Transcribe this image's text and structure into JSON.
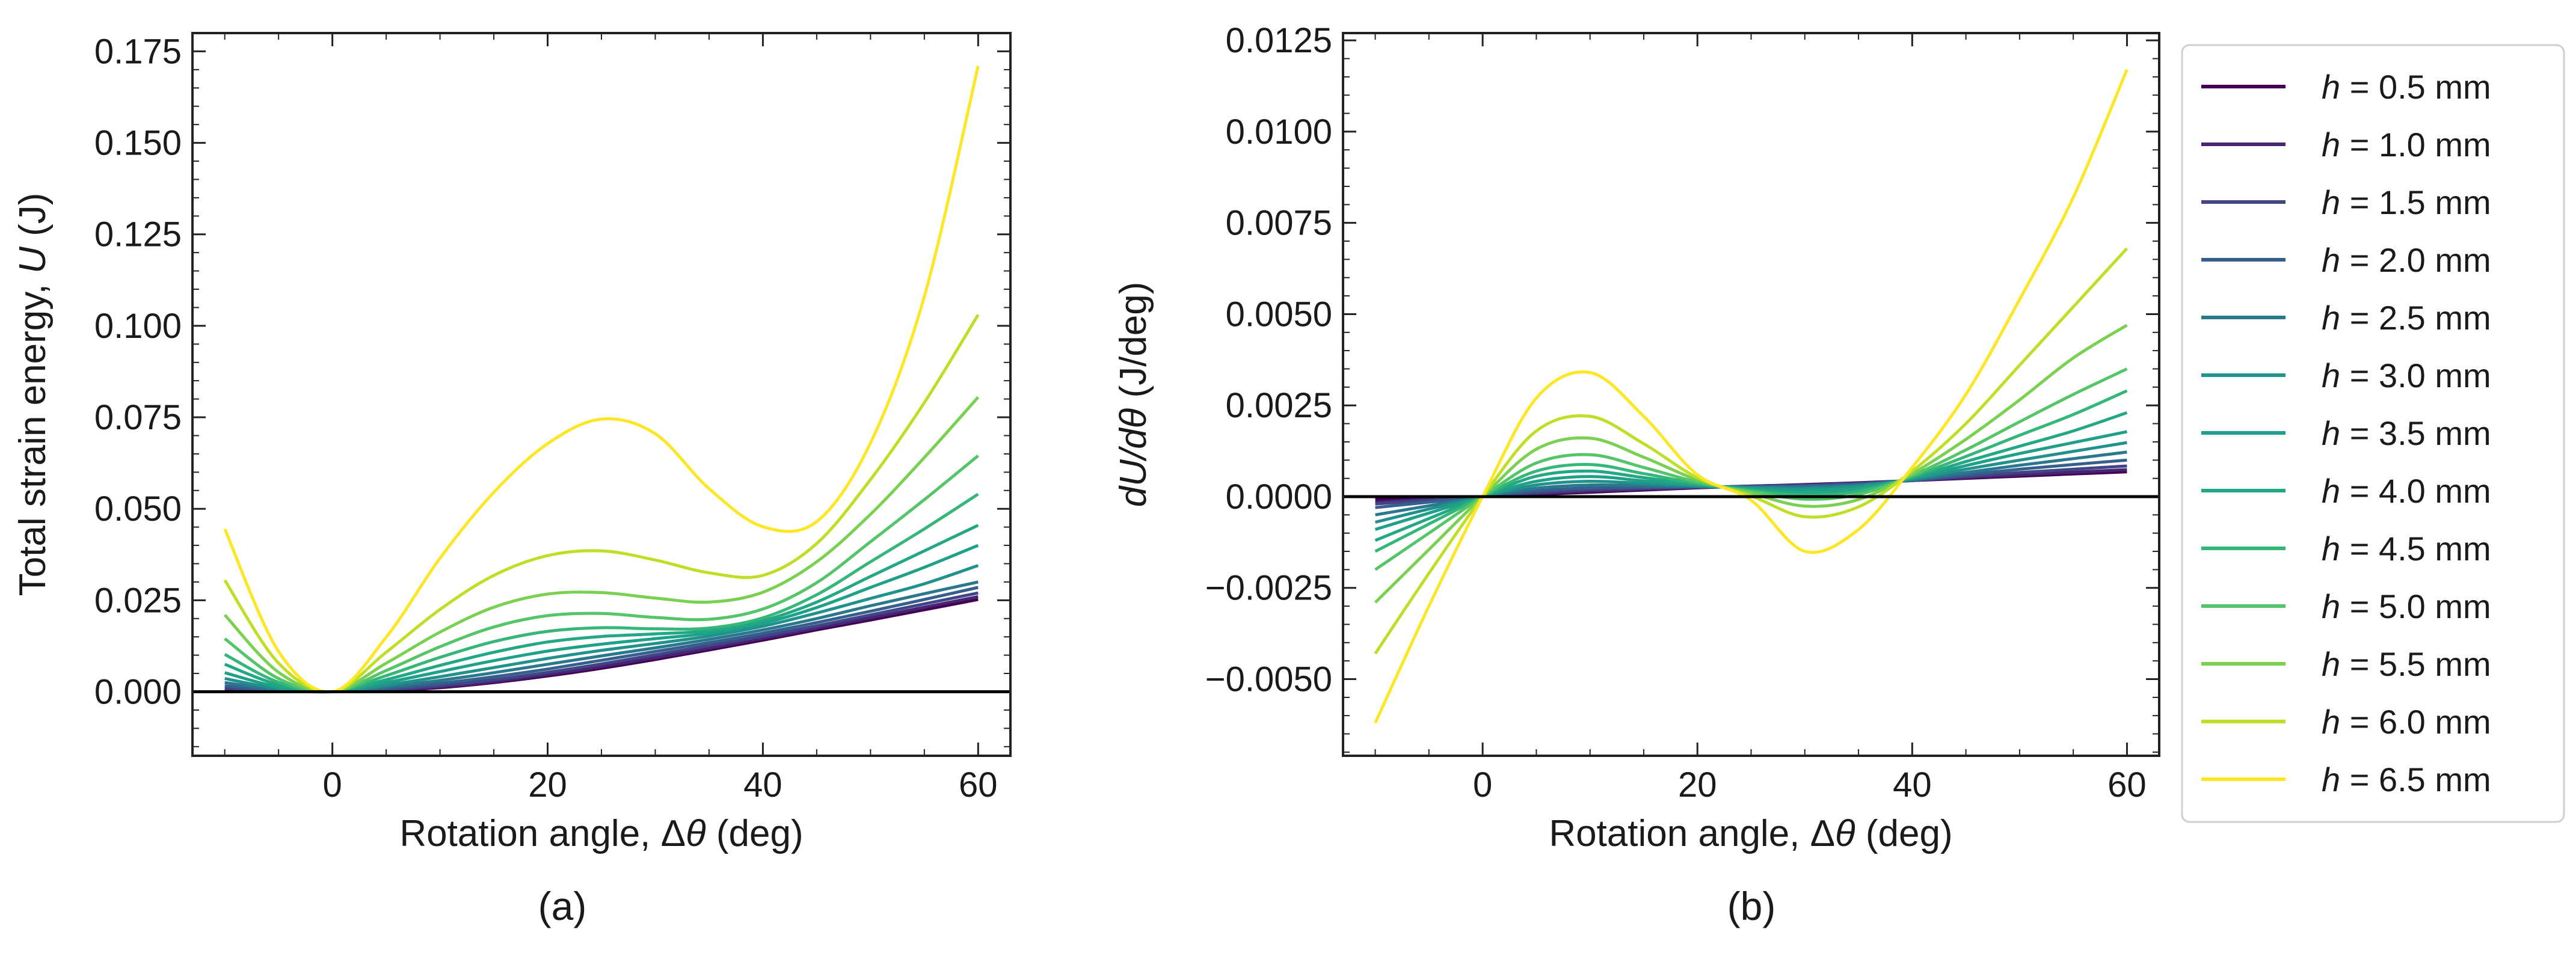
{
  "chart_data": [
    {
      "type": "line",
      "panel": "(a)",
      "xlabel_prefix": "Rotation angle, Δ",
      "xlabel_symbol": "θ",
      "xlabel_suffix": " (deg)",
      "ylabel_prefix": "Total strain energy, ",
      "ylabel_symbol": "U",
      "ylabel_suffix": " (J)",
      "xlim": [
        -13,
        63
      ],
      "ylim": [
        -0.0175,
        0.18
      ],
      "xticks": [
        0,
        20,
        40,
        60
      ],
      "xtick_labels": [
        "0",
        "20",
        "40",
        "60"
      ],
      "yticks": [
        0.0,
        0.025,
        0.05,
        0.075,
        0.1,
        0.125,
        0.15,
        0.175
      ],
      "ytick_labels": [
        "0.000",
        "0.025",
        "0.050",
        "0.075",
        "0.100",
        "0.125",
        "0.150",
        "0.175"
      ],
      "reference_line_y": 0,
      "x": [
        -10,
        -5,
        0,
        5,
        10,
        15,
        20,
        25,
        30,
        35,
        40,
        45,
        50,
        55,
        60
      ],
      "series": [
        {
          "name": "h = 0.5 mm",
          "values": [
            0.0003,
            0.0001,
            0.0,
            0.0003,
            0.0011,
            0.0025,
            0.0043,
            0.0064,
            0.0088,
            0.0114,
            0.0141,
            0.0169,
            0.0196,
            0.0224,
            0.0252
          ]
        },
        {
          "name": "h = 1.0 mm",
          "values": [
            0.0006,
            0.0001,
            0.0,
            0.0004,
            0.0013,
            0.0028,
            0.0047,
            0.0069,
            0.0093,
            0.0119,
            0.0146,
            0.0174,
            0.0202,
            0.0231,
            0.026
          ]
        },
        {
          "name": "h = 1.5 mm",
          "values": [
            0.001,
            0.0002,
            0.0,
            0.0006,
            0.0017,
            0.0033,
            0.0053,
            0.0076,
            0.0101,
            0.0126,
            0.0152,
            0.018,
            0.021,
            0.024,
            0.027
          ]
        },
        {
          "name": "h = 2.0 mm",
          "values": [
            0.0016,
            0.0004,
            0.0,
            0.0009,
            0.0023,
            0.0041,
            0.0062,
            0.0086,
            0.011,
            0.0134,
            0.016,
            0.0189,
            0.022,
            0.0252,
            0.0285
          ]
        },
        {
          "name": "h = 2.5 mm",
          "values": [
            0.0025,
            0.0006,
            0.0,
            0.0013,
            0.0031,
            0.0052,
            0.0075,
            0.0098,
            0.012,
            0.0143,
            0.0169,
            0.02,
            0.0235,
            0.0268,
            0.03
          ]
        },
        {
          "name": "h = 3.0 mm",
          "values": [
            0.0036,
            0.0009,
            0.0,
            0.0018,
            0.0041,
            0.0066,
            0.0091,
            0.0113,
            0.0132,
            0.0152,
            0.0179,
            0.0215,
            0.0255,
            0.0295,
            0.0345
          ]
        },
        {
          "name": "h = 3.5 mm",
          "values": [
            0.0052,
            0.0013,
            0.0,
            0.0025,
            0.0055,
            0.0085,
            0.0111,
            0.013,
            0.0145,
            0.016,
            0.0187,
            0.023,
            0.0285,
            0.034,
            0.04
          ]
        },
        {
          "name": "h = 4.0 mm",
          "values": [
            0.0075,
            0.0019,
            0.0,
            0.0033,
            0.0072,
            0.0108,
            0.0136,
            0.0151,
            0.0158,
            0.0167,
            0.0194,
            0.0245,
            0.0315,
            0.0385,
            0.0455
          ]
        },
        {
          "name": "h = 4.5 mm",
          "values": [
            0.0102,
            0.0026,
            0.0,
            0.0044,
            0.0094,
            0.0137,
            0.0165,
            0.0175,
            0.0172,
            0.0174,
            0.0202,
            0.0265,
            0.0355,
            0.0445,
            0.054
          ]
        },
        {
          "name": "h = 5.0 mm",
          "values": [
            0.0145,
            0.0036,
            0.0,
            0.0058,
            0.0123,
            0.0177,
            0.0208,
            0.0214,
            0.0203,
            0.0198,
            0.0226,
            0.0298,
            0.041,
            0.0525,
            0.0645
          ]
        },
        {
          "name": "h = 5.5 mm",
          "values": [
            0.021,
            0.0053,
            0.0,
            0.0078,
            0.0163,
            0.0231,
            0.0267,
            0.0271,
            0.0256,
            0.0245,
            0.0272,
            0.0355,
            0.0485,
            0.064,
            0.0805
          ]
        },
        {
          "name": "h = 6.0 mm",
          "values": [
            0.0305,
            0.0078,
            0.0,
            0.0108,
            0.0225,
            0.0318,
            0.0372,
            0.0385,
            0.036,
            0.0325,
            0.0318,
            0.0405,
            0.058,
            0.079,
            0.103
          ]
        },
        {
          "name": "h = 6.5 mm",
          "values": [
            0.0445,
            0.011,
            0.0,
            0.0149,
            0.0365,
            0.0545,
            0.0678,
            0.0745,
            0.0705,
            0.0555,
            0.0451,
            0.0465,
            0.068,
            0.108,
            0.171
          ]
        }
      ]
    },
    {
      "type": "line",
      "panel": "(b)",
      "xlabel_prefix": "Rotation angle, Δ",
      "xlabel_symbol": "θ",
      "xlabel_suffix": " (deg)",
      "ylabel_main": "dU/dθ",
      "ylabel_suffix": " (J/deg)",
      "xlim": [
        -13,
        63
      ],
      "ylim": [
        -0.0071,
        0.0127
      ],
      "xticks": [
        0,
        20,
        40,
        60
      ],
      "xtick_labels": [
        "0",
        "20",
        "40",
        "60"
      ],
      "yticks": [
        -0.005,
        -0.0025,
        0.0,
        0.0025,
        0.005,
        0.0075,
        0.01,
        0.0125
      ],
      "ytick_labels": [
        "−0.0050",
        "−0.0025",
        "0.0000",
        "0.0025",
        "0.0050",
        "0.0075",
        "0.0100",
        "0.0125"
      ],
      "reference_line_y": 0,
      "x": [
        -10,
        -5,
        0,
        5,
        10,
        15,
        20,
        25,
        30,
        35,
        40,
        45,
        50,
        55,
        60
      ],
      "series": [
        {
          "name": "h = 0.5 mm",
          "values": [
            -8e-05,
            -4e-05,
            0.0,
            6e-05,
            0.00012,
            0.00018,
            0.00024,
            0.00029,
            0.00033,
            0.00038,
            0.00044,
            0.0005,
            0.00056,
            0.00062,
            0.00068
          ]
        },
        {
          "name": "h = 1.0 mm",
          "values": [
            -0.00015,
            -7e-05,
            0.0,
            8e-05,
            0.00015,
            0.0002,
            0.00025,
            0.00029,
            0.00032,
            0.00037,
            0.00044,
            0.00052,
            0.0006,
            0.00067,
            0.00074
          ]
        },
        {
          "name": "h = 1.5 mm",
          "values": [
            -0.0002,
            -0.0001,
            0.0,
            0.00011,
            0.00019,
            0.00023,
            0.00026,
            0.00028,
            0.00031,
            0.00036,
            0.00044,
            0.00055,
            0.00066,
            0.00075,
            0.00084
          ]
        },
        {
          "name": "h = 2.0 mm",
          "values": [
            -0.0003,
            -0.00015,
            0.0,
            0.00016,
            0.00024,
            0.00026,
            0.00027,
            0.00027,
            0.00029,
            0.00034,
            0.00045,
            0.0006,
            0.00075,
            0.00088,
            0.001
          ]
        },
        {
          "name": "h = 2.5 mm",
          "values": [
            -0.0005,
            -0.00025,
            0.0,
            0.00023,
            0.00032,
            0.0003,
            0.00028,
            0.00026,
            0.00026,
            0.00032,
            0.00046,
            0.00066,
            0.00086,
            0.00104,
            0.00122
          ]
        },
        {
          "name": "h = 3.0 mm",
          "values": [
            -0.0007,
            -0.00034,
            0.0,
            0.00032,
            0.00042,
            0.00036,
            0.0003,
            0.00024,
            0.00022,
            0.00029,
            0.00048,
            0.00075,
            0.001,
            0.00124,
            0.00148
          ]
        },
        {
          "name": "h = 3.5 mm",
          "values": [
            -0.0009,
            -0.00045,
            0.0,
            0.00042,
            0.00055,
            0.00043,
            0.00031,
            0.00022,
            0.00017,
            0.00025,
            0.0005,
            0.00085,
            0.00118,
            0.00148,
            0.00178
          ]
        },
        {
          "name": "h = 4.0 mm",
          "values": [
            -0.0012,
            -0.0006,
            0.0,
            0.00056,
            0.0007,
            0.00052,
            0.00033,
            0.00019,
            0.00011,
            0.0002,
            0.00052,
            0.00096,
            0.00138,
            0.0018,
            0.0023
          ]
        },
        {
          "name": "h = 4.5 mm",
          "values": [
            -0.0015,
            -0.00075,
            0.0,
            0.0007,
            0.00088,
            0.00063,
            0.00036,
            0.00017,
            4e-05,
            0.00014,
            0.00055,
            0.0011,
            0.00168,
            0.00225,
            0.0029
          ]
        },
        {
          "name": "h = 5.0 mm",
          "values": [
            -0.002,
            -0.001,
            0.0,
            0.00092,
            0.00115,
            0.0008,
            0.0004,
            0.00014,
            -7e-05,
            6e-05,
            0.00058,
            0.00128,
            0.00205,
            0.0028,
            0.0035
          ]
        },
        {
          "name": "h = 5.5 mm",
          "values": [
            -0.0029,
            -0.00145,
            0.0,
            0.0013,
            0.0016,
            0.00108,
            0.00046,
            9e-05,
            -0.00026,
            -8e-05,
            0.00063,
            0.00157,
            0.00265,
            0.0038,
            0.0047
          ]
        },
        {
          "name": "h = 6.0 mm",
          "values": [
            -0.0043,
            -0.0021,
            0.0,
            0.0018,
            0.0022,
            0.00145,
            0.00052,
            2e-05,
            -0.00055,
            -0.00028,
            0.0007,
            0.002,
            0.0036,
            0.0052,
            0.0068
          ]
        },
        {
          "name": "h = 6.5 mm",
          "values": [
            -0.0062,
            -0.003,
            0.0,
            0.0027,
            0.0034,
            0.0022,
            0.0006,
            -0.0001,
            -0.0015,
            -0.0009,
            0.0008,
            0.0028,
            0.0054,
            0.0082,
            0.0117
          ]
        }
      ]
    }
  ],
  "legend": {
    "position": "right",
    "entries": [
      {
        "symbol": "h",
        "text": " = 0.5 mm",
        "color": "#440154"
      },
      {
        "symbol": "h",
        "text": " = 1.0 mm",
        "color": "#482475"
      },
      {
        "symbol": "h",
        "text": " = 1.5 mm",
        "color": "#414487"
      },
      {
        "symbol": "h",
        "text": " = 2.0 mm",
        "color": "#355f8d"
      },
      {
        "symbol": "h",
        "text": " = 2.5 mm",
        "color": "#2a788e"
      },
      {
        "symbol": "h",
        "text": " = 3.0 mm",
        "color": "#21918c"
      },
      {
        "symbol": "h",
        "text": " = 3.5 mm",
        "color": "#1fa088"
      },
      {
        "symbol": "h",
        "text": " = 4.0 mm",
        "color": "#22a884"
      },
      {
        "symbol": "h",
        "text": " = 4.5 mm",
        "color": "#35b779"
      },
      {
        "symbol": "h",
        "text": " = 5.0 mm",
        "color": "#54c568"
      },
      {
        "symbol": "h",
        "text": " = 5.5 mm",
        "color": "#7ad151"
      },
      {
        "symbol": "h",
        "text": " = 6.0 mm",
        "color": "#bddf26"
      },
      {
        "symbol": "h",
        "text": " = 6.5 mm",
        "color": "#fde725"
      }
    ]
  },
  "panel_labels": {
    "a": "(a)",
    "b": "(b)"
  }
}
